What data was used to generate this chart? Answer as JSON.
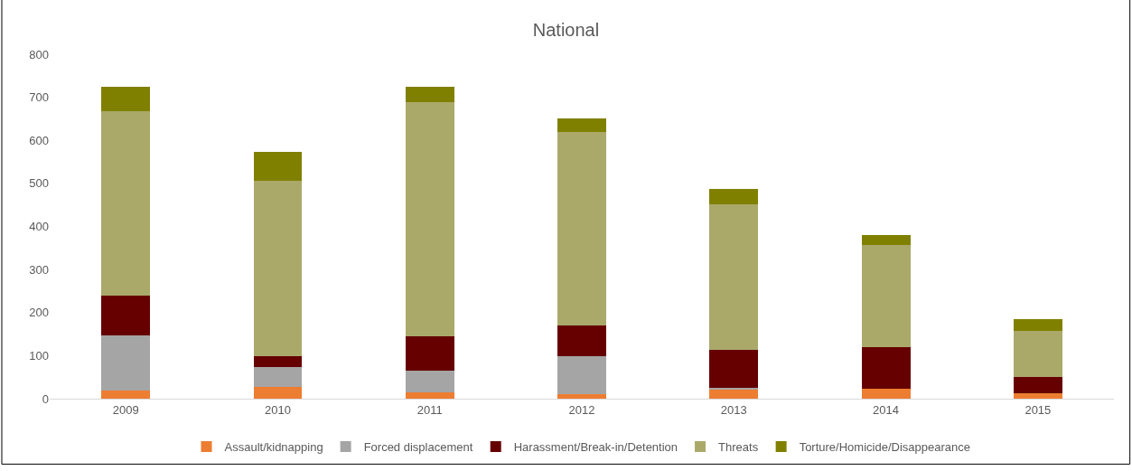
{
  "chart_data": {
    "type": "bar",
    "title": "National",
    "stacked": true,
    "categories": [
      "2009",
      "2010",
      "2011",
      "2012",
      "2013",
      "2014",
      "2015"
    ],
    "series": [
      {
        "name": "Assault/kidnapping",
        "color": "#ed7d31",
        "values": [
          18,
          27,
          15,
          10,
          23,
          23,
          12
        ]
      },
      {
        "name": "Forced displacement",
        "color": "#a5a5a5",
        "values": [
          128,
          46,
          51,
          88,
          3,
          0,
          0
        ]
      },
      {
        "name": "Harassment/Break-in/Detention",
        "color": "#660000",
        "values": [
          94,
          26,
          79,
          73,
          88,
          97,
          38
        ]
      },
      {
        "name": "Threats",
        "color": "#aaa96a",
        "values": [
          428,
          407,
          544,
          449,
          337,
          237,
          108
        ]
      },
      {
        "name": "Torture/Homicide/Disappearance",
        "color": "#808000",
        "values": [
          56,
          68,
          35,
          31,
          37,
          23,
          27
        ]
      }
    ],
    "ylim": [
      0,
      800
    ],
    "yticks": [
      0,
      100,
      200,
      300,
      400,
      500,
      600,
      700,
      800
    ],
    "grid": false,
    "legend": "bottom"
  }
}
